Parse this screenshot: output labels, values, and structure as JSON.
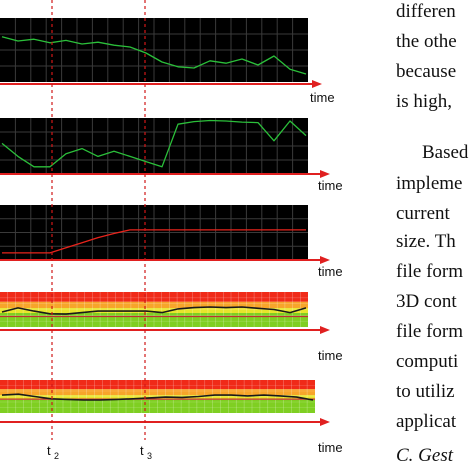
{
  "figure": {
    "axis_label": "time",
    "markers": [
      "t",
      "t"
    ],
    "marker_subscripts": [
      "2",
      "3"
    ],
    "colors": {
      "panel_bg": "#000000",
      "grid": "#3a3a3a",
      "green_trace": "#2bbf3a",
      "red_trace": "#e8241c",
      "axis": "#e02020",
      "marker": "#d01818",
      "band_red": "#f02a18",
      "band_orange": "#f7a52a",
      "band_yellow": "#e8e52c",
      "band_green": "#7fcf22",
      "threshold_line": "#c03030",
      "aggregate_line": "#1a1a1a"
    },
    "chart_data": [
      {
        "type": "line",
        "panel": "dark",
        "series_color": "green_trace",
        "x": [
          0,
          1,
          2,
          3,
          4,
          5,
          6,
          7,
          8,
          9,
          10,
          11,
          12,
          13,
          14,
          15,
          16,
          17,
          18,
          19
        ],
        "y": [
          0.72,
          0.65,
          0.68,
          0.62,
          0.66,
          0.6,
          0.63,
          0.58,
          0.55,
          0.45,
          0.3,
          0.22,
          0.2,
          0.32,
          0.28,
          0.35,
          0.25,
          0.4,
          0.18,
          0.1
        ],
        "ylim": [
          0,
          1
        ]
      },
      {
        "type": "line",
        "panel": "dark",
        "series_color": "green_trace",
        "x": [
          0,
          1,
          2,
          3,
          4,
          5,
          6,
          7,
          8,
          9,
          10,
          11,
          12,
          13,
          14,
          15,
          16,
          17,
          18,
          19
        ],
        "y": [
          0.55,
          0.3,
          0.1,
          0.1,
          0.35,
          0.45,
          0.3,
          0.4,
          0.3,
          0.2,
          0.1,
          0.92,
          0.97,
          0.99,
          0.98,
          0.96,
          0.95,
          0.6,
          0.98,
          0.7
        ],
        "ylim": [
          0,
          1
        ]
      },
      {
        "type": "line",
        "panel": "dark",
        "series_color": "red_trace",
        "x": [
          0,
          1,
          2,
          3,
          4,
          5,
          6,
          7,
          8,
          9,
          10,
          11,
          12,
          13,
          14,
          15,
          16,
          17,
          18,
          19
        ],
        "y": [
          0.1,
          0.1,
          0.1,
          0.1,
          0.2,
          0.3,
          0.4,
          0.48,
          0.55,
          0.55,
          0.55,
          0.55,
          0.55,
          0.55,
          0.55,
          0.55,
          0.55,
          0.55,
          0.55,
          0.55
        ],
        "ylim": [
          0,
          1
        ]
      },
      {
        "type": "line",
        "panel": "bands",
        "series_color": "aggregate_line",
        "threshold": 0.3,
        "x": [
          0,
          1,
          2,
          3,
          4,
          5,
          6,
          7,
          8,
          9,
          10,
          11,
          12,
          13,
          14,
          15,
          16,
          17,
          18,
          19
        ],
        "y": [
          0.42,
          0.55,
          0.45,
          0.36,
          0.35,
          0.4,
          0.45,
          0.45,
          0.45,
          0.45,
          0.4,
          0.52,
          0.56,
          0.58,
          0.56,
          0.58,
          0.54,
          0.5,
          0.4,
          0.55
        ],
        "ylim": [
          0,
          1
        ]
      },
      {
        "type": "line",
        "panel": "bands",
        "series_color": "aggregate_line",
        "threshold": 0.42,
        "x": [
          0,
          1,
          2,
          3,
          4,
          5,
          6,
          7,
          8,
          9,
          10,
          11,
          12,
          13,
          14,
          15,
          16,
          17,
          18,
          19
        ],
        "y": [
          0.55,
          0.58,
          0.5,
          0.42,
          0.4,
          0.38,
          0.38,
          0.4,
          0.42,
          0.45,
          0.48,
          0.47,
          0.5,
          0.55,
          0.55,
          0.52,
          0.55,
          0.52,
          0.48,
          0.38
        ],
        "ylim": [
          0,
          1
        ]
      }
    ]
  },
  "text": {
    "lines": [
      "differen",
      "the othe",
      "because",
      "is high,",
      "Based",
      "impleme",
      "current",
      "size. Th",
      "file form",
      "3D cont",
      "file form",
      "computi",
      "to utiliz",
      "applicat"
    ],
    "heading": "C. Gest"
  }
}
